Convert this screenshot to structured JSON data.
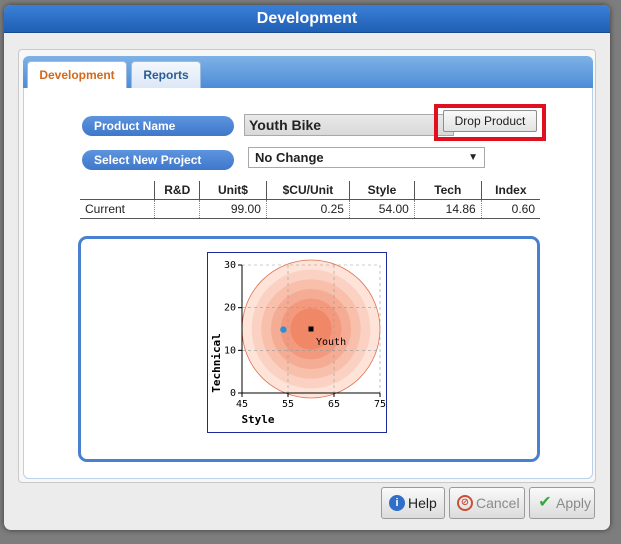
{
  "window": {
    "title": "Development"
  },
  "tabs": [
    {
      "label": "Development",
      "active": true
    },
    {
      "label": "Reports",
      "active": false
    }
  ],
  "form": {
    "product_name_label": "Product Name",
    "product_name_value": "Youth Bike",
    "drop_product_label": "Drop Product",
    "select_project_label": "Select New Project",
    "select_project_value": "No Change"
  },
  "spec_table": {
    "headers": [
      "",
      "R&D",
      "Unit$",
      "$CU/Unit",
      "Style",
      "Tech",
      "Index"
    ],
    "rows": [
      {
        "label": "Current",
        "rd": "",
        "unit_price": "99.00",
        "cu_unit": "0.25",
        "style": "54.00",
        "tech": "14.86",
        "index": "0.60"
      }
    ]
  },
  "chart_data": {
    "type": "scatter",
    "xlabel": "Style",
    "ylabel": "Technical",
    "xlim": [
      45,
      75
    ],
    "ylim": [
      0,
      30
    ],
    "x_ticks": [
      "45",
      "55",
      "65",
      "75"
    ],
    "y_ticks": [
      "0",
      "10",
      "20",
      "30"
    ],
    "grid": true,
    "target": {
      "label": "Youth",
      "x": 60,
      "y": 15,
      "radius_units": 15
    },
    "points": [
      {
        "x": 54,
        "y": 14.86,
        "color": "#2a8fd8"
      }
    ],
    "colors": {
      "ring_outer": "#fde3d8",
      "ring_inner": "#f08868",
      "point": "#2a8fd8",
      "target": "#000000"
    }
  },
  "footer": {
    "help_label": "Help",
    "cancel_label": "Cancel",
    "apply_label": "Apply"
  }
}
